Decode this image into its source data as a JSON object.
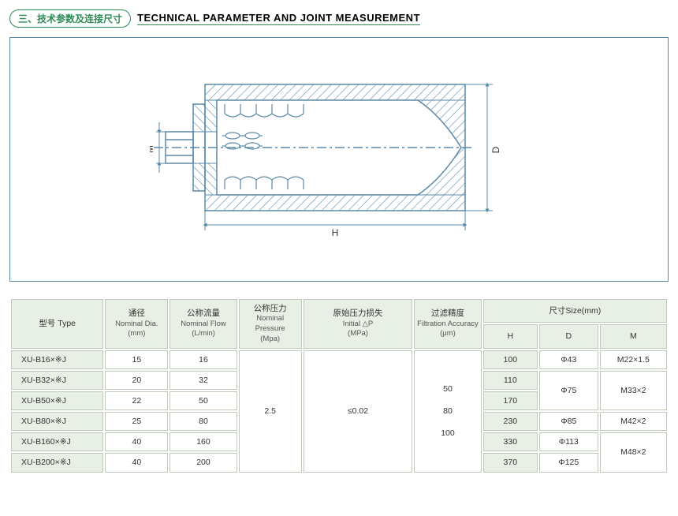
{
  "header": {
    "badge": "三、技术参数及连接尺寸",
    "title_en": "TECHNICAL PARAMETER AND JOINT MEASUREMENT"
  },
  "diagram": {
    "label_M": "M",
    "label_H": "H",
    "label_D": "D",
    "hatch_color": "#5b8aa8",
    "line_color": "#5b8aa8",
    "dim_color": "#5b8aa8"
  },
  "table": {
    "columns": {
      "type": {
        "cn": "型号 Type",
        "en": ""
      },
      "dia": {
        "cn": "通径",
        "en": "Nominal Dia.",
        "unit": "(mm)"
      },
      "flow": {
        "cn": "公称流量",
        "en": "Nominal Flow",
        "unit": "(L/min)"
      },
      "press": {
        "cn": "公称压力",
        "en": "Nominal Pressure",
        "unit": "(Mpa)"
      },
      "dp": {
        "cn": "原始压力损失",
        "en": "Initial △P",
        "unit": "(MPa)"
      },
      "acc": {
        "cn": "过滤精度",
        "en": "Filtration Accuracy",
        "unit": "(μm)"
      },
      "size": {
        "cn": "尺寸Size(mm)",
        "en": ""
      },
      "H": "H",
      "D": "D",
      "M": "M"
    },
    "shared": {
      "pressure": "2.5",
      "dp": "≤0.02",
      "accuracy": [
        "50",
        "80",
        "100"
      ]
    },
    "rows": [
      {
        "type": "XU-B16×※J",
        "dia": "15",
        "flow": "16",
        "H": "100",
        "D": "Φ43",
        "M": "M22×1.5",
        "d_rowspan": 1,
        "m_rowspan": 1
      },
      {
        "type": "XU-B32×※J",
        "dia": "20",
        "flow": "32",
        "H": "110",
        "D": "Φ75",
        "M": "M33×2",
        "d_rowspan": 2,
        "m_rowspan": 2
      },
      {
        "type": "XU-B50×※J",
        "dia": "22",
        "flow": "50",
        "H": "170"
      },
      {
        "type": "XU-B80×※J",
        "dia": "25",
        "flow": "80",
        "H": "230",
        "D": "Φ85",
        "M": "M42×2",
        "d_rowspan": 1,
        "m_rowspan": 1
      },
      {
        "type": "XU-B160×※J",
        "dia": "40",
        "flow": "160",
        "H": "330",
        "D": "Φ113",
        "M": "M48×2",
        "d_rowspan": 1,
        "m_rowspan": 2
      },
      {
        "type": "XU-B200×※J",
        "dia": "40",
        "flow": "200",
        "H": "370",
        "D": "Φ125",
        "d_rowspan": 1
      }
    ]
  }
}
